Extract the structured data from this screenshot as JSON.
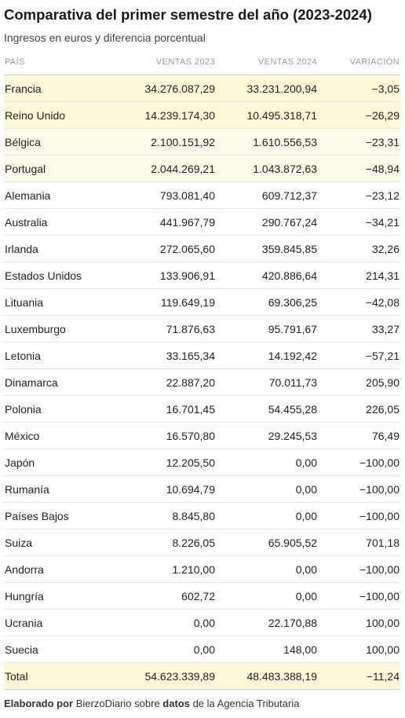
{
  "header": {
    "title": "Comparativa del primer semestre del año (2023-2024)",
    "subtitle": "Ingresos en euros y diferencia porcentual"
  },
  "chart_data": {
    "type": "table",
    "title": "Comparativa del primer semestre del año (2023-2024)",
    "subtitle": "Ingresos en euros y diferencia porcentual",
    "columns": [
      "PAÍS",
      "VENTAS 2023",
      "VENTAS 2024",
      "VARIACIÓN"
    ],
    "rows": [
      {
        "pais": "Francia",
        "v2023": "34.276.087,29",
        "v2024": "33.231.200,94",
        "var": "−3,05",
        "highlight": "strong"
      },
      {
        "pais": "Reino Unido",
        "v2023": "14.239.174,30",
        "v2024": "10.495.318,71",
        "var": "−26,29",
        "highlight": "strong"
      },
      {
        "pais": "Bélgica",
        "v2023": "2.100.151,92",
        "v2024": "1.610.556,53",
        "var": "−23,31",
        "highlight": "light"
      },
      {
        "pais": "Portugal",
        "v2023": "2.044.269,21",
        "v2024": "1.043.872,63",
        "var": "−48,94",
        "highlight": "light"
      },
      {
        "pais": "Alemania",
        "v2023": "793.081,40",
        "v2024": "609.712,37",
        "var": "−23,12",
        "highlight": "none"
      },
      {
        "pais": "Australia",
        "v2023": "441.967,79",
        "v2024": "290.767,24",
        "var": "−34,21",
        "highlight": "none"
      },
      {
        "pais": "Irlanda",
        "v2023": "272.065,60",
        "v2024": "359.845,85",
        "var": "32,26",
        "highlight": "none"
      },
      {
        "pais": "Estados Unidos",
        "v2023": "133.906,91",
        "v2024": "420.886,64",
        "var": "214,31",
        "highlight": "none"
      },
      {
        "pais": "Lituania",
        "v2023": "119.649,19",
        "v2024": "69.306,25",
        "var": "−42,08",
        "highlight": "none"
      },
      {
        "pais": "Luxemburgo",
        "v2023": "71.876,63",
        "v2024": "95.791,67",
        "var": "33,27",
        "highlight": "none"
      },
      {
        "pais": "Letonia",
        "v2023": "33.165,34",
        "v2024": "14.192,42",
        "var": "−57,21",
        "highlight": "none"
      },
      {
        "pais": "Dinamarca",
        "v2023": "22.887,20",
        "v2024": "70.011,73",
        "var": "205,90",
        "highlight": "none"
      },
      {
        "pais": "Polonia",
        "v2023": "16.701,45",
        "v2024": "54.455,28",
        "var": "226,05",
        "highlight": "none"
      },
      {
        "pais": "México",
        "v2023": "16.570,80",
        "v2024": "29.245,53",
        "var": "76,49",
        "highlight": "none"
      },
      {
        "pais": "Japón",
        "v2023": "12.205,50",
        "v2024": "0,00",
        "var": "−100,00",
        "highlight": "none"
      },
      {
        "pais": "Rumanía",
        "v2023": "10.694,79",
        "v2024": "0,00",
        "var": "−100,00",
        "highlight": "none"
      },
      {
        "pais": "Países Bajos",
        "v2023": "8.845,80",
        "v2024": "0,00",
        "var": "−100,00",
        "highlight": "none"
      },
      {
        "pais": "Suiza",
        "v2023": "8.226,05",
        "v2024": "65.905,52",
        "var": "701,18",
        "highlight": "none"
      },
      {
        "pais": "Andorra",
        "v2023": "1.210,00",
        "v2024": "0,00",
        "var": "−100,00",
        "highlight": "none"
      },
      {
        "pais": "Hungría",
        "v2023": "602,72",
        "v2024": "0,00",
        "var": "−100,00",
        "highlight": "none"
      },
      {
        "pais": "Ucrania",
        "v2023": "0,00",
        "v2024": "22.170,88",
        "var": "100,00",
        "highlight": "none"
      },
      {
        "pais": "Suecia",
        "v2023": "0,00",
        "v2024": "148,00",
        "var": "100,00",
        "highlight": "none"
      }
    ],
    "total": {
      "pais": "Total",
      "v2023": "54.623.339,89",
      "v2024": "48.483.388,19",
      "var": "−11,24"
    },
    "colors": {
      "highlight_strong": "#fdf8d8",
      "highlight_light": "#fdfaea",
      "header_text": "#999999"
    }
  },
  "footer": {
    "part1": "Elaborado por",
    "part2": " BierzoDiario sobre ",
    "part3": "datos",
    "part4": " de la Agencia Tributaria"
  }
}
